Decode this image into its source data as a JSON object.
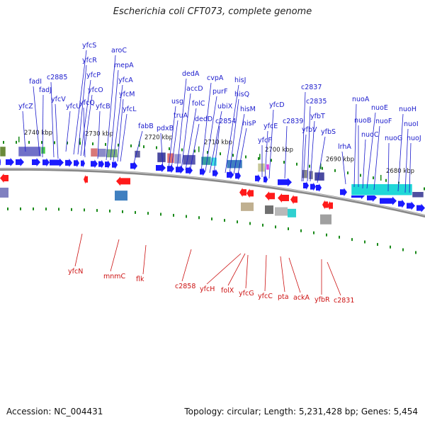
{
  "title": "Escherichia coli CFT073, complete genome",
  "footer": {
    "accession": "Accession: NC_004431",
    "summary": "Topology: circular; Length: 5,231,428 bp; Genes: 5,454"
  },
  "colors": {
    "forward": "#1a1aff",
    "reverse": "#ff1a1a",
    "forward_label": "#1a1acc",
    "reverse_label": "#cc1111",
    "backbone": "#888888",
    "tick": "#1a8a1a"
  },
  "scale_kbp": [
    "2740 kbp",
    "2730 kbp",
    "2720 kbp",
    "2710 kbp",
    "2700 kbp",
    "2690 kbp",
    "2680 kbp"
  ],
  "forward_genes": [
    "yfcZ",
    "fadI",
    "fadJ",
    "c2885",
    "yfcV",
    "yfcU",
    "yfcS",
    "yfcR",
    "yfcP",
    "yfcO",
    "yfcQ",
    "yfcB",
    "aroC",
    "mepA",
    "yfcA",
    "yfcM",
    "yfcL",
    "fabB",
    "pdxB",
    "usg",
    "truA",
    "dedA",
    "accD",
    "folC",
    "dedD",
    "cvpA",
    "purF",
    "ubiX",
    "c2854",
    "hisJ",
    "hisQ",
    "hisM",
    "hisP",
    "yfcF",
    "yfcE",
    "yfcD",
    "c2839",
    "c2837",
    "yfbV",
    "c2835",
    "yfbT",
    "yfbS",
    "lrhA",
    "nuoA",
    "nuoB",
    "nuoC",
    "nuoE",
    "nuoF",
    "nuoG",
    "nuoH",
    "nuoI",
    "nuoJ"
  ],
  "reverse_genes": [
    "yfcN",
    "mnmC",
    "flk",
    "c2858",
    "yfcH",
    "folX",
    "yfcG",
    "yfcC",
    "pta",
    "ackA",
    "yfbR",
    "c2831"
  ]
}
